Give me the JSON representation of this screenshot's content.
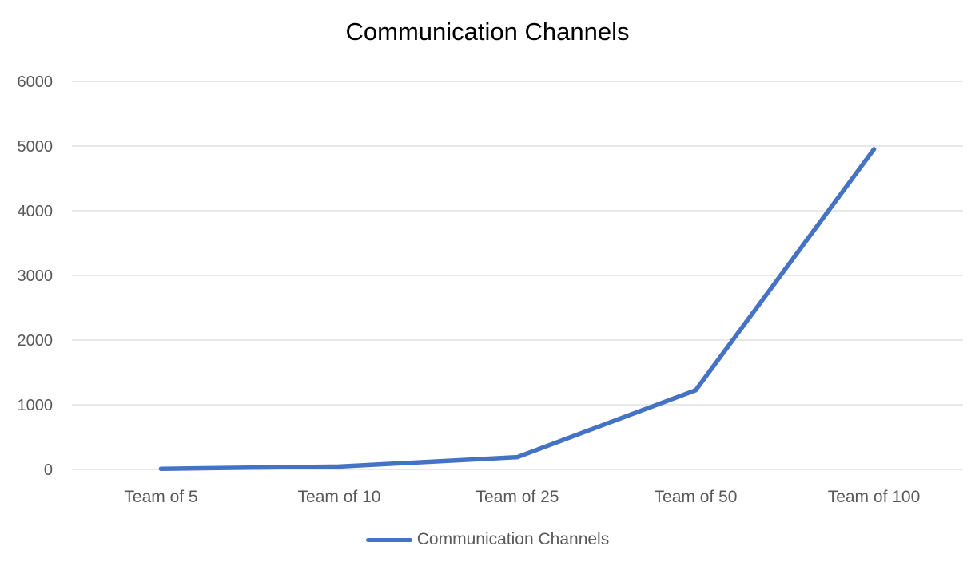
{
  "chart_data": {
    "type": "line",
    "title": "Communication Channels",
    "xlabel": "",
    "ylabel": "",
    "categories": [
      "Team of 5",
      "Team of 10",
      "Team of 25",
      "Team of 50",
      "Team of 100"
    ],
    "series": [
      {
        "name": "Communication Channels",
        "values": [
          10,
          45,
          190,
          1225,
          4950
        ],
        "color": "#4472C4"
      }
    ],
    "ylim": [
      0,
      6000
    ],
    "yticks": [
      "0",
      "1000",
      "2000",
      "3000",
      "4000",
      "5000",
      "6000"
    ],
    "grid": true,
    "legend_position": "bottom"
  },
  "colors": {
    "gridline": "#D9D9D9",
    "tick_label": "#595959",
    "title": "#000000"
  }
}
